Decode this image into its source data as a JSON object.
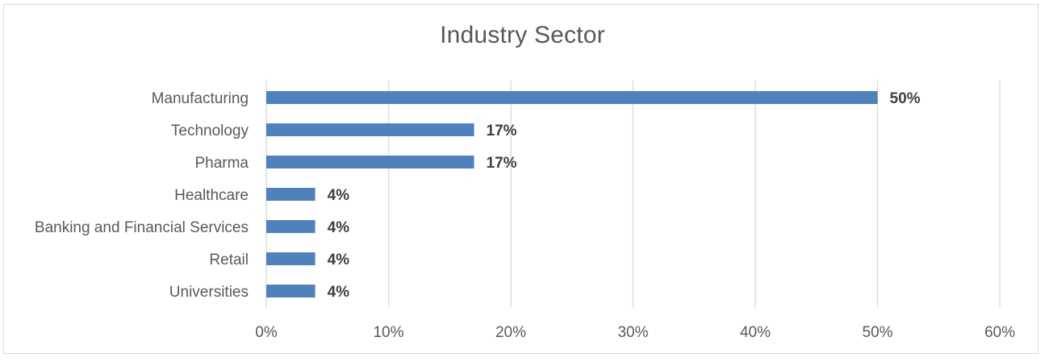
{
  "chart_data": {
    "type": "bar",
    "orientation": "horizontal",
    "title": "Industry Sector",
    "xlabel": "",
    "ylabel": "",
    "categories": [
      "Manufacturing",
      "Technology",
      "Pharma",
      "Healthcare",
      "Banking and Financial Services",
      "Retail",
      "Universities"
    ],
    "values": [
      50,
      17,
      17,
      4,
      4,
      4,
      4
    ],
    "data_labels": [
      "50%",
      "17%",
      "17%",
      "4%",
      "4%",
      "4%",
      "4%"
    ],
    "xlim": [
      0,
      60
    ],
    "x_ticks": [
      "0%",
      "10%",
      "20%",
      "30%",
      "40%",
      "50%",
      "60%"
    ],
    "grid": "vertical",
    "legend": "none",
    "bar_color": "#4f81bd",
    "grid_color": "#d9d9d9",
    "text_color": "#595959",
    "label_color": "#404040"
  }
}
